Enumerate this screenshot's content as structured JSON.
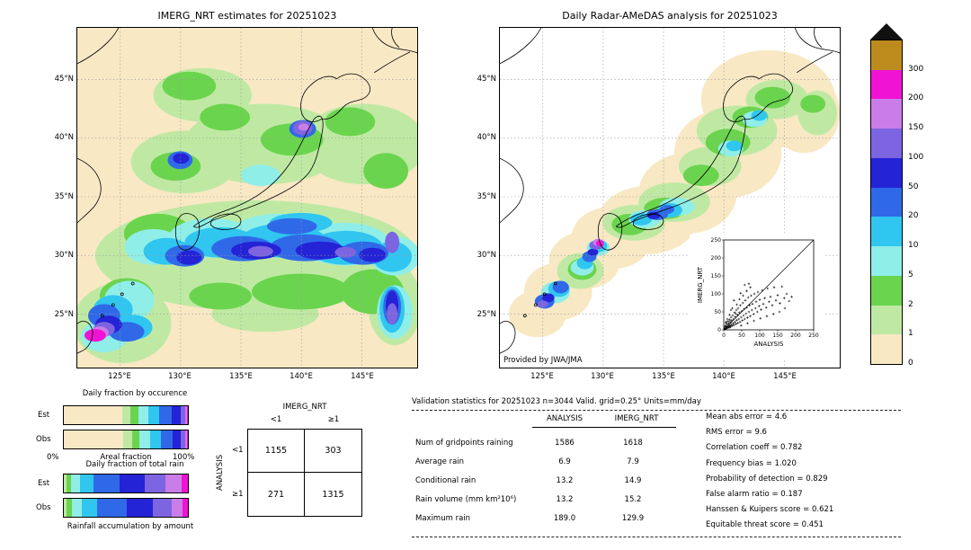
{
  "palette": {
    "cream": "#f8e8c4",
    "pale_green": "#bfe9a3",
    "green": "#6bd44e",
    "light_cyan": "#8feee8",
    "cyan": "#30c6f0",
    "blue": "#3069e8",
    "dark_blue": "#2423d6",
    "purple": "#7d64e0",
    "orchid": "#ca7de8",
    "magenta": "#f013d4",
    "ochre": "#bd8a1d",
    "over": "#111111"
  },
  "maps": {
    "left": {
      "title": "IMERG_NRT estimates for 20251023",
      "lat_ticks": [
        "45°N",
        "40°N",
        "35°N",
        "30°N",
        "25°N"
      ],
      "lon_ticks": [
        "125°E",
        "130°E",
        "135°E",
        "140°E",
        "145°E"
      ]
    },
    "right": {
      "title": "Daily Radar-AMeDAS analysis for 20251023",
      "credit": "Provided by JWA/JMA",
      "lat_ticks": [
        "45°N",
        "40°N",
        "35°N",
        "30°N",
        "25°N"
      ],
      "lon_ticks": [
        "125°E",
        "130°E",
        "135°E",
        "140°E",
        "145°E"
      ]
    }
  },
  "colorbar": {
    "labels": [
      "300",
      "200",
      "150",
      "100",
      "50",
      "20",
      "10",
      "5",
      "2",
      "1",
      "0"
    ],
    "segments": [
      "#bd8a1d",
      "#f013d4",
      "#ca7de8",
      "#7d64e0",
      "#2423d6",
      "#3069e8",
      "#30c6f0",
      "#8feee8",
      "#6bd44e",
      "#bfe9a3",
      "#f8e8c4"
    ]
  },
  "inset": {
    "xlabel": "ANALYSIS",
    "ylabel": "IMERG_NRT",
    "ticks": [
      "0",
      "50",
      "100",
      "150",
      "200",
      "250"
    ]
  },
  "fractions": {
    "occurrence_title": "Daily fraction by occurence",
    "total_title": "Daily fraction of total rain",
    "footer": "Rainfall accumulation by amount",
    "areal_left": "0%",
    "areal_label": "Areal fraction",
    "areal_right": "100%",
    "est_label": "Est",
    "obs_label": "Obs",
    "occurrence": {
      "est": [
        {
          "c": "cream",
          "pct": 46.9
        },
        {
          "c": "pale_green",
          "pct": 7
        },
        {
          "c": "green",
          "pct": 6
        },
        {
          "c": "light_cyan",
          "pct": 8.5
        },
        {
          "c": "cyan",
          "pct": 8.6
        },
        {
          "c": "blue",
          "pct": 10
        },
        {
          "c": "dark_blue",
          "pct": 7
        },
        {
          "c": "purple",
          "pct": 3.5
        },
        {
          "c": "orchid",
          "pct": 1.6
        },
        {
          "c": "magenta",
          "pct": 0.9
        }
      ],
      "obs": [
        {
          "c": "cream",
          "pct": 47.9
        },
        {
          "c": "pale_green",
          "pct": 7
        },
        {
          "c": "green",
          "pct": 6
        },
        {
          "c": "light_cyan",
          "pct": 8.5
        },
        {
          "c": "cyan",
          "pct": 9
        },
        {
          "c": "blue",
          "pct": 9.4
        },
        {
          "c": "dark_blue",
          "pct": 6.6
        },
        {
          "c": "purple",
          "pct": 3.4
        },
        {
          "c": "orchid",
          "pct": 1.5
        },
        {
          "c": "magenta",
          "pct": 0.7
        }
      ]
    },
    "total": {
      "est": [
        {
          "c": "pale_green",
          "pct": 2
        },
        {
          "c": "green",
          "pct": 4
        },
        {
          "c": "light_cyan",
          "pct": 7
        },
        {
          "c": "cyan",
          "pct": 11
        },
        {
          "c": "blue",
          "pct": 21
        },
        {
          "c": "dark_blue",
          "pct": 20
        },
        {
          "c": "purple",
          "pct": 17
        },
        {
          "c": "orchid",
          "pct": 13
        },
        {
          "c": "magenta",
          "pct": 5
        }
      ],
      "obs": [
        {
          "c": "pale_green",
          "pct": 2
        },
        {
          "c": "green",
          "pct": 4.5
        },
        {
          "c": "light_cyan",
          "pct": 8
        },
        {
          "c": "cyan",
          "pct": 12
        },
        {
          "c": "blue",
          "pct": 24.5
        },
        {
          "c": "dark_blue",
          "pct": 21
        },
        {
          "c": "purple",
          "pct": 15
        },
        {
          "c": "orchid",
          "pct": 9
        },
        {
          "c": "magenta",
          "pct": 4
        }
      ]
    }
  },
  "contingency": {
    "col_title": "IMERG_NRT",
    "row_title": "ANALYSIS",
    "col_headers": [
      "<1",
      "≥1"
    ],
    "row_headers": [
      "<1",
      "≥1"
    ],
    "cells": [
      [
        "1155",
        "303"
      ],
      [
        "271",
        "1315"
      ]
    ]
  },
  "stats": {
    "header": "Validation statistics for 20251023  n=3044 Valid. grid=0.25° Units=mm/day",
    "col1": "ANALYSIS",
    "col2": "IMERG_NRT",
    "rows": [
      {
        "label": "Num of gridpoints raining",
        "a": "1586",
        "b": "1618"
      },
      {
        "label": "Average rain",
        "a": "6.9",
        "b": "7.9"
      },
      {
        "label": "Conditional rain",
        "a": "13.2",
        "b": "14.9"
      },
      {
        "label": "Rain volume (mm km²10⁶)",
        "a": "13.2",
        "b": "15.2"
      },
      {
        "label": "Maximum rain",
        "a": "189.0",
        "b": "129.9"
      }
    ],
    "metrics": [
      {
        "label": "Mean abs error",
        "value": "4.6"
      },
      {
        "label": "RMS error",
        "value": "9.6"
      },
      {
        "label": "Correlation coeff",
        "value": "0.782"
      },
      {
        "label": "Frequency bias",
        "value": "1.020"
      },
      {
        "label": "Probability of detection",
        "value": "0.829"
      },
      {
        "label": "False alarm ratio",
        "value": "0.187"
      },
      {
        "label": "Hanssen & Kuipers score",
        "value": "0.621"
      },
      {
        "label": "Equitable threat score",
        "value": "0.451"
      }
    ]
  },
  "chart_data": [
    {
      "type": "heatmap",
      "title": "IMERG_NRT estimates for 20251023",
      "xlabel": "longitude",
      "ylabel": "latitude",
      "x_ticks": [
        "125°E",
        "130°E",
        "135°E",
        "140°E",
        "145°E"
      ],
      "y_ticks": [
        "45°N",
        "40°N",
        "35°N",
        "30°N",
        "25°N"
      ],
      "units": "mm/day",
      "levels": [
        0,
        1,
        2,
        5,
        10,
        20,
        50,
        100,
        150,
        200,
        300
      ]
    },
    {
      "type": "heatmap",
      "title": "Daily Radar-AMeDAS analysis for 20251023",
      "xlabel": "longitude",
      "ylabel": "latitude",
      "x_ticks": [
        "125°E",
        "130°E",
        "135°E",
        "140°E",
        "145°E"
      ],
      "y_ticks": [
        "45°N",
        "40°N",
        "35°N",
        "30°N",
        "25°N"
      ],
      "units": "mm/day",
      "levels": [
        0,
        1,
        2,
        5,
        10,
        20,
        50,
        100,
        150,
        200,
        300
      ],
      "annotation": "Provided by JWA/JMA"
    },
    {
      "type": "scatter",
      "xlabel": "ANALYSIS",
      "ylabel": "IMERG_NRT",
      "xlim": [
        0,
        250
      ],
      "ylim": [
        0,
        250
      ],
      "identity_line": true,
      "points": [
        [
          2,
          3
        ],
        [
          3,
          8
        ],
        [
          4,
          2
        ],
        [
          5,
          12
        ],
        [
          6,
          5
        ],
        [
          7,
          18
        ],
        [
          8,
          9
        ],
        [
          9,
          4
        ],
        [
          10,
          15
        ],
        [
          11,
          7
        ],
        [
          12,
          24
        ],
        [
          13,
          10
        ],
        [
          14,
          18
        ],
        [
          15,
          6
        ],
        [
          16,
          28
        ],
        [
          17,
          12
        ],
        [
          18,
          22
        ],
        [
          19,
          8
        ],
        [
          20,
          35
        ],
        [
          21,
          15
        ],
        [
          22,
          26
        ],
        [
          23,
          11
        ],
        [
          25,
          40
        ],
        [
          26,
          18
        ],
        [
          27,
          30
        ],
        [
          28,
          13
        ],
        [
          30,
          48
        ],
        [
          31,
          22
        ],
        [
          32,
          36
        ],
        [
          34,
          16
        ],
        [
          35,
          55
        ],
        [
          36,
          27
        ],
        [
          38,
          42
        ],
        [
          39,
          19
        ],
        [
          40,
          60
        ],
        [
          42,
          30
        ],
        [
          43,
          48
        ],
        [
          45,
          22
        ],
        [
          46,
          68
        ],
        [
          48,
          35
        ],
        [
          50,
          52
        ],
        [
          52,
          26
        ],
        [
          53,
          75
        ],
        [
          55,
          40
        ],
        [
          57,
          58
        ],
        [
          58,
          30
        ],
        [
          60,
          82
        ],
        [
          62,
          45
        ],
        [
          64,
          62
        ],
        [
          66,
          34
        ],
        [
          68,
          90
        ],
        [
          70,
          50
        ],
        [
          72,
          68
        ],
        [
          74,
          38
        ],
        [
          76,
          95
        ],
        [
          78,
          55
        ],
        [
          80,
          72
        ],
        [
          83,
          44
        ],
        [
          85,
          100
        ],
        [
          88,
          60
        ],
        [
          90,
          78
        ],
        [
          93,
          50
        ],
        [
          95,
          105
        ],
        [
          98,
          66
        ],
        [
          100,
          84
        ],
        [
          104,
          56
        ],
        [
          107,
          110
        ],
        [
          110,
          72
        ],
        [
          114,
          88
        ],
        [
          118,
          62
        ],
        [
          122,
          115
        ],
        [
          126,
          78
        ],
        [
          130,
          92
        ],
        [
          135,
          68
        ],
        [
          140,
          118
        ],
        [
          145,
          82
        ],
        [
          150,
          96
        ],
        [
          156,
          74
        ],
        [
          162,
          120
        ],
        [
          168,
          88
        ],
        [
          175,
          100
        ],
        [
          182,
          80
        ],
        [
          189,
          92
        ],
        [
          170,
          60
        ],
        [
          155,
          50
        ],
        [
          138,
          44
        ],
        [
          120,
          38
        ],
        [
          102,
          32
        ],
        [
          84,
          25
        ],
        [
          66,
          18
        ],
        [
          48,
          12
        ],
        [
          33,
          45
        ],
        [
          24,
          60
        ],
        [
          16,
          42
        ],
        [
          10,
          30
        ],
        [
          6,
          22
        ],
        [
          44,
          85
        ],
        [
          54,
          95
        ],
        [
          64,
          108
        ],
        [
          74,
          118
        ],
        [
          36,
          70
        ],
        [
          28,
          82
        ],
        [
          20,
          55
        ],
        [
          58,
          125
        ],
        [
          47,
          102
        ],
        [
          70,
          128
        ]
      ]
    },
    {
      "type": "table",
      "title": "Contingency table (gridpoints)",
      "col_group": "IMERG_NRT",
      "row_group": "ANALYSIS",
      "columns": [
        "<1",
        "≥1"
      ],
      "rows": [
        [
          "<1",
          "1155",
          "303"
        ],
        [
          "≥1",
          "271",
          "1315"
        ]
      ]
    },
    {
      "type": "table",
      "title": "Validation statistics for 20251023  n=3044 Valid. grid=0.25° Units=mm/day",
      "columns": [
        "",
        "ANALYSIS",
        "IMERG_NRT"
      ],
      "rows": [
        [
          "Num of gridpoints raining",
          "1586",
          "1618"
        ],
        [
          "Average rain",
          "6.9",
          "7.9"
        ],
        [
          "Conditional rain",
          "13.2",
          "14.9"
        ],
        [
          "Rain volume (mm km²10⁶)",
          "13.2",
          "15.2"
        ],
        [
          "Maximum rain",
          "189.0",
          "129.9"
        ]
      ],
      "metrics": {
        "Mean abs error": "4.6",
        "RMS error": "9.6",
        "Correlation coeff": "0.782",
        "Frequency bias": "1.020",
        "Probability of detection": "0.829",
        "False alarm ratio": "0.187",
        "Hanssen & Kuipers score": "0.621",
        "Equitable threat score": "0.451"
      }
    },
    {
      "type": "bar",
      "title": "Daily fraction by occurence",
      "stacked": true,
      "categories": [
        "Est",
        "Obs"
      ],
      "note": "stacked % of gridpoints per rainfall class, classes 0,1,2,5,10,20,50,100,150,200,300 mm/day"
    },
    {
      "type": "bar",
      "title": "Daily fraction of total rain",
      "stacked": true,
      "categories": [
        "Est",
        "Obs"
      ]
    }
  ]
}
